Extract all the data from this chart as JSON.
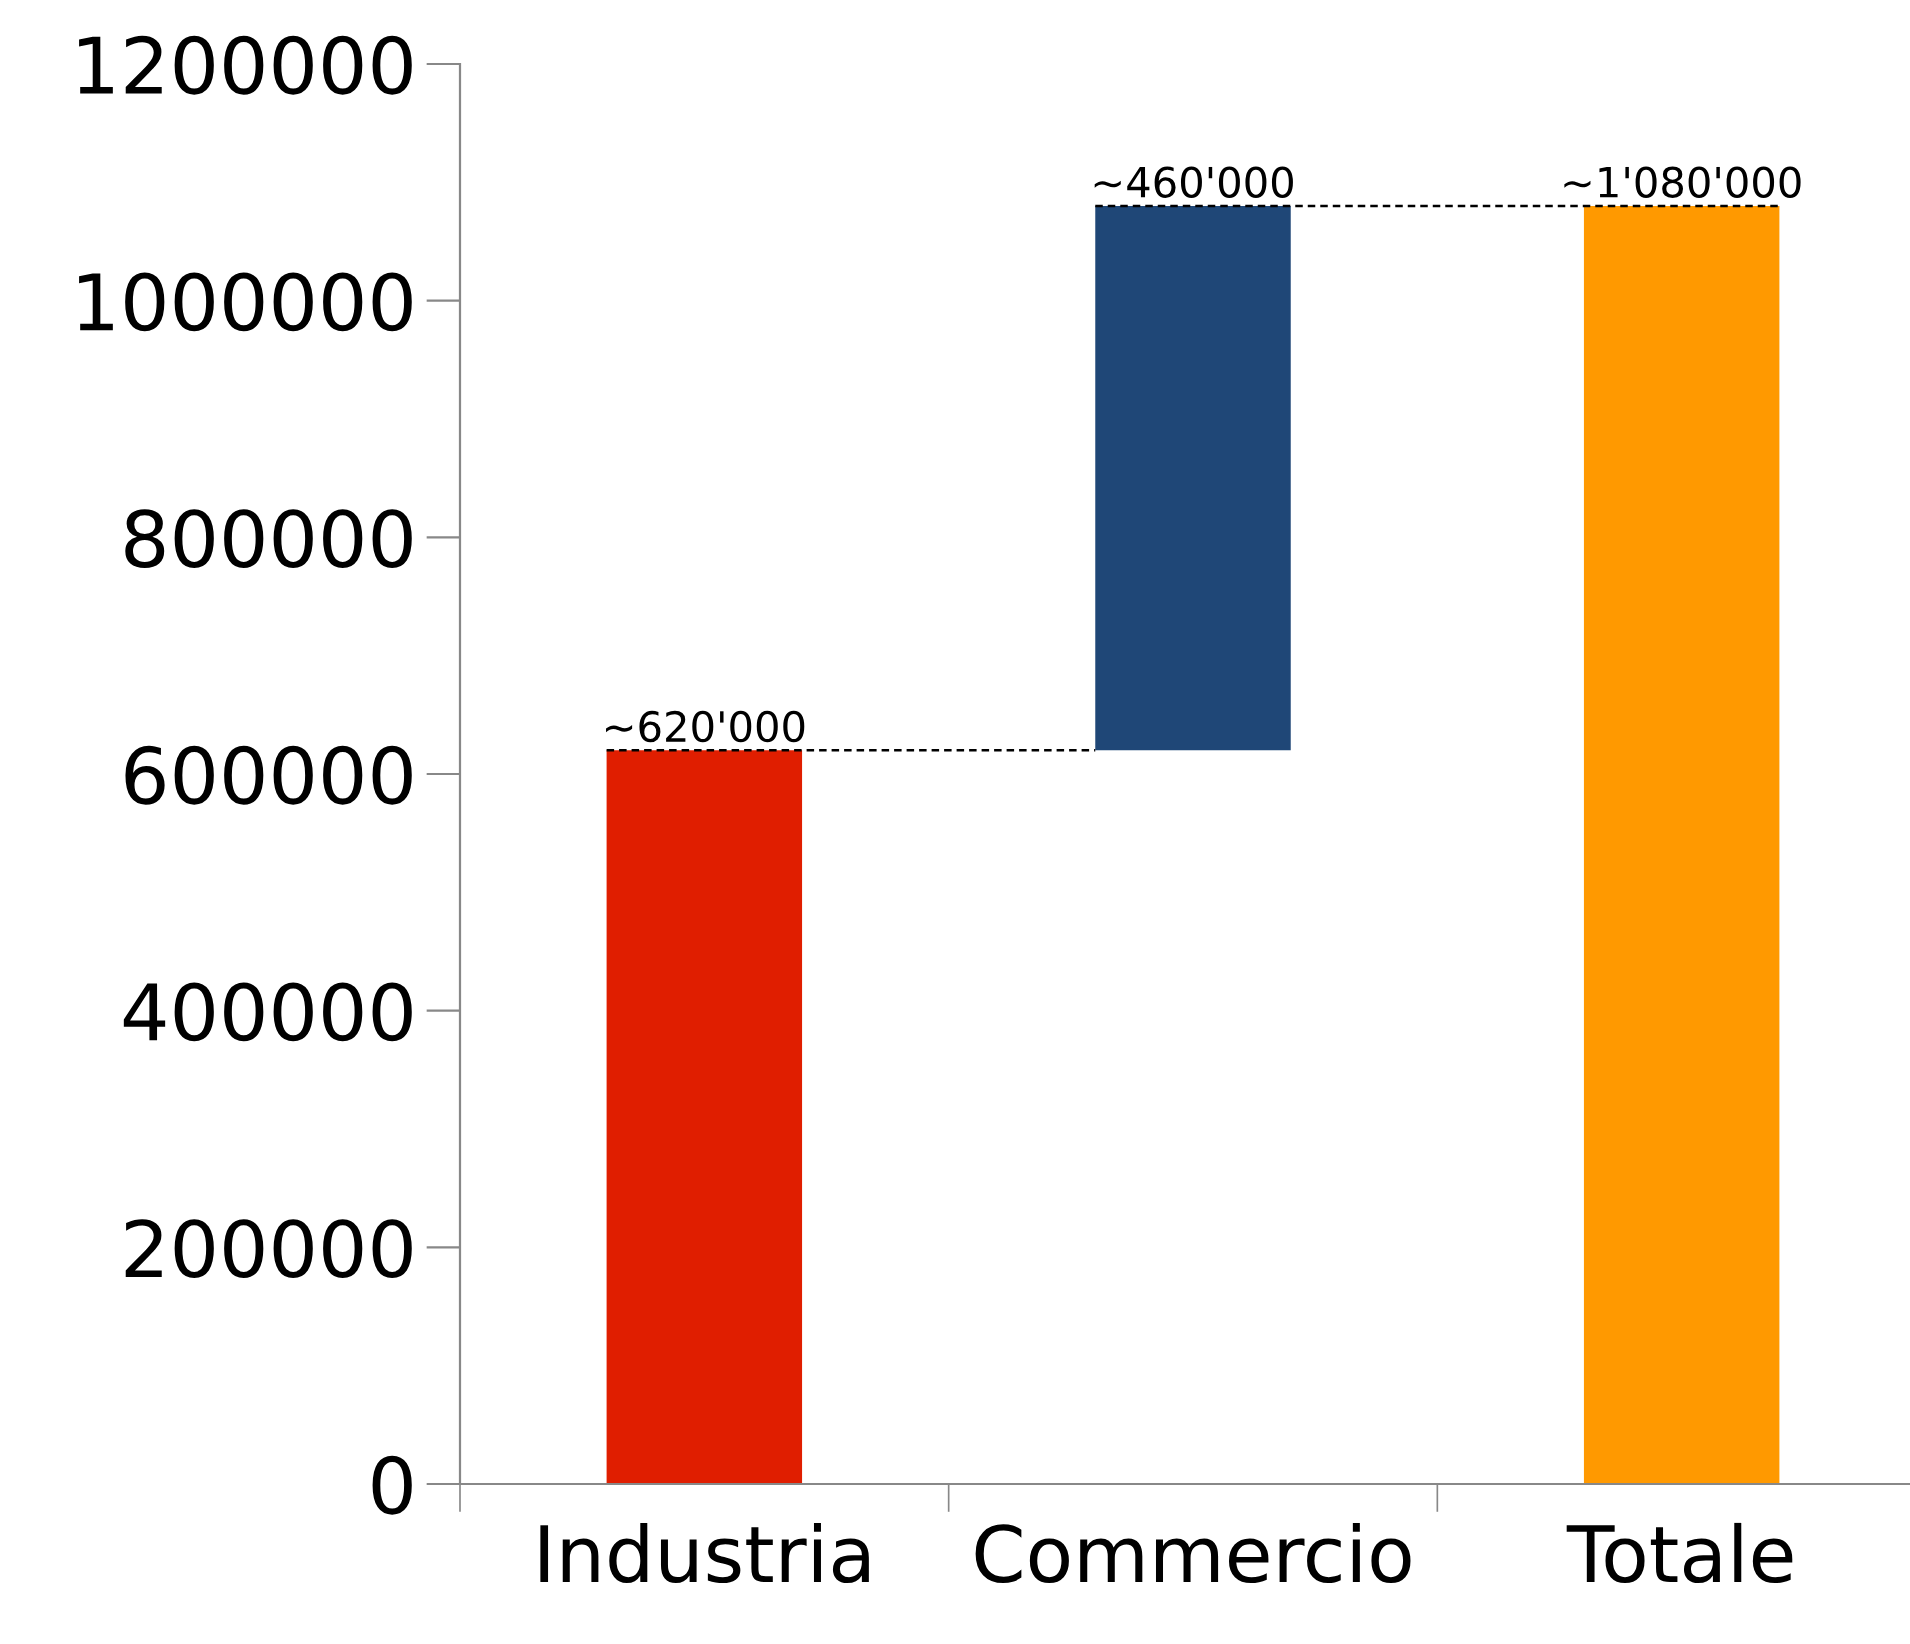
{
  "chart_data": {
    "type": "bar",
    "categories": [
      "Industria",
      "Commercio",
      "Totale"
    ],
    "values": [
      620000,
      460000,
      1080000
    ],
    "base": [
      0,
      620000,
      0
    ],
    "colors": [
      "#e01e00",
      "#1f4777",
      "#ff9900"
    ],
    "value_labels": [
      "~620'000",
      "~460'000",
      "~1'080'000"
    ],
    "ylim": [
      0,
      1200000
    ],
    "yticks": [
      0,
      200000,
      400000,
      600000,
      800000,
      1000000,
      1200000
    ]
  }
}
